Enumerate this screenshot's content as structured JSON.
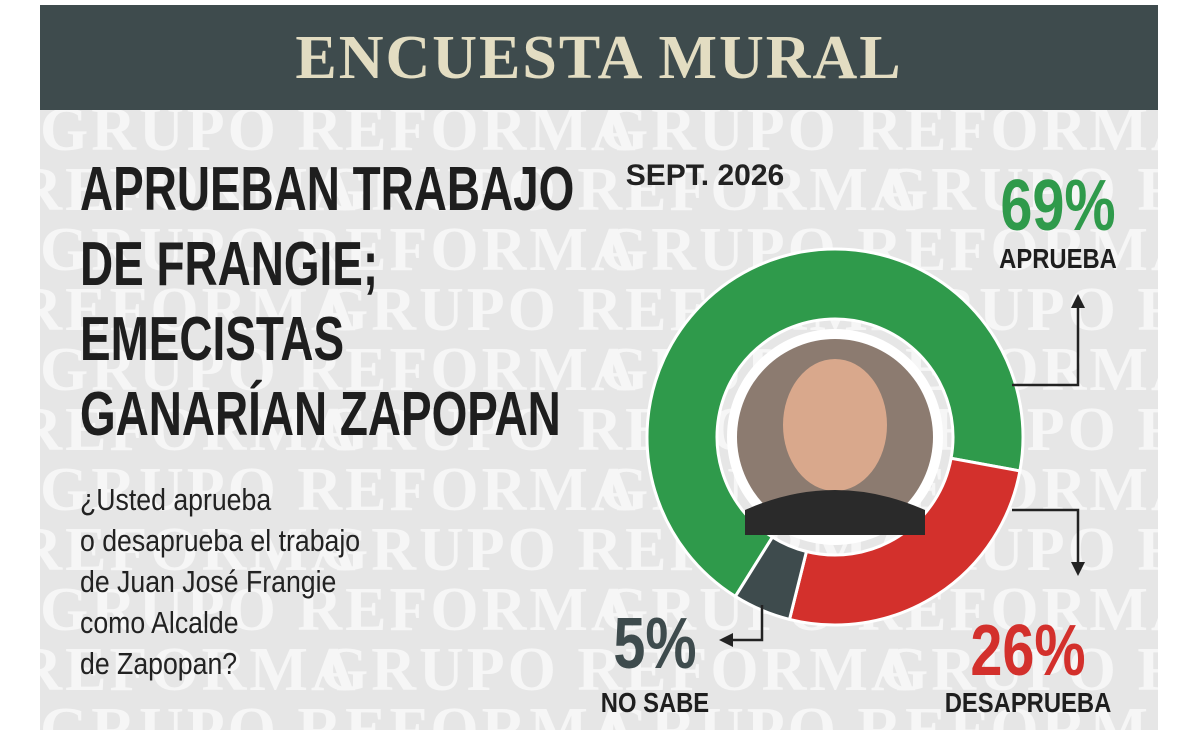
{
  "chart_data": {
    "type": "donut",
    "title": "ENCUESTA MURAL",
    "watermark": "GRUPO REFORMA",
    "headline": [
      "APRUEBAN TRABAJO",
      "DE FRANGIE;",
      "EMECISTAS",
      "GANARÍAN ZAPOPAN"
    ],
    "question": [
      "¿Usted aprueba",
      "o desaprueba el trabajo",
      "de Juan José Frangie",
      "como Alcalde",
      "de Zapopan?"
    ],
    "date": "SEPT. 2026",
    "categories": [
      "APRUEBA",
      "DESAPRUEBA",
      "NO SABE"
    ],
    "values": [
      69,
      26,
      5
    ],
    "value_labels": [
      "69%",
      "26%",
      "5%"
    ],
    "colors": [
      "#2f9a4b",
      "#d3302c",
      "#3e4b4d"
    ]
  }
}
